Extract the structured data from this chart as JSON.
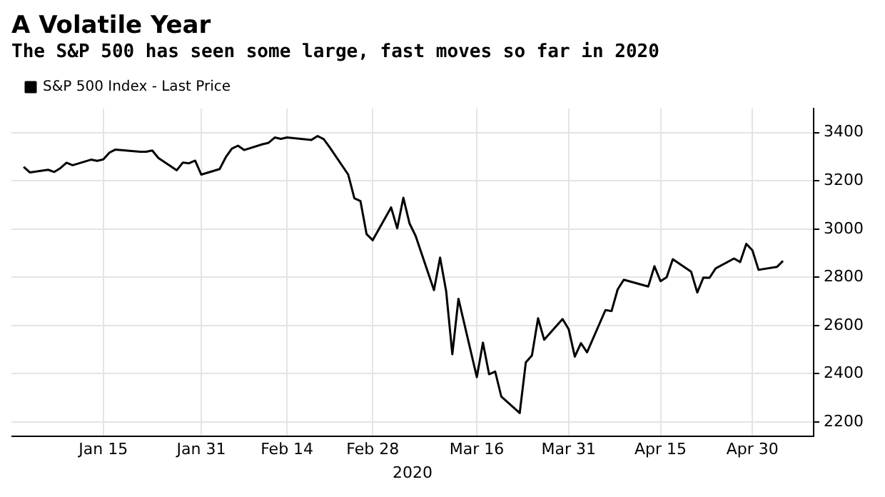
{
  "chart_data": {
    "type": "line",
    "title": "A Volatile Year",
    "subtitle": "The S&P 500 has seen some large, fast moves so far in 2020",
    "xlabel": "2020",
    "x": [
      "2020-01-02",
      "2020-01-03",
      "2020-01-06",
      "2020-01-07",
      "2020-01-08",
      "2020-01-09",
      "2020-01-10",
      "2020-01-13",
      "2020-01-14",
      "2020-01-15",
      "2020-01-16",
      "2020-01-17",
      "2020-01-21",
      "2020-01-22",
      "2020-01-23",
      "2020-01-24",
      "2020-01-27",
      "2020-01-28",
      "2020-01-29",
      "2020-01-30",
      "2020-01-31",
      "2020-02-03",
      "2020-02-04",
      "2020-02-05",
      "2020-02-06",
      "2020-02-07",
      "2020-02-10",
      "2020-02-11",
      "2020-02-12",
      "2020-02-13",
      "2020-02-14",
      "2020-02-18",
      "2020-02-19",
      "2020-02-20",
      "2020-02-21",
      "2020-02-24",
      "2020-02-25",
      "2020-02-26",
      "2020-02-27",
      "2020-02-28",
      "2020-03-02",
      "2020-03-03",
      "2020-03-04",
      "2020-03-05",
      "2020-03-06",
      "2020-03-09",
      "2020-03-10",
      "2020-03-11",
      "2020-03-12",
      "2020-03-13",
      "2020-03-16",
      "2020-03-17",
      "2020-03-18",
      "2020-03-19",
      "2020-03-20",
      "2020-03-23",
      "2020-03-24",
      "2020-03-25",
      "2020-03-26",
      "2020-03-27",
      "2020-03-30",
      "2020-03-31",
      "2020-04-01",
      "2020-04-02",
      "2020-04-03",
      "2020-04-06",
      "2020-04-07",
      "2020-04-08",
      "2020-04-09",
      "2020-04-13",
      "2020-04-14",
      "2020-04-15",
      "2020-04-16",
      "2020-04-17",
      "2020-04-20",
      "2020-04-21",
      "2020-04-22",
      "2020-04-23",
      "2020-04-24",
      "2020-04-27",
      "2020-04-28",
      "2020-04-29",
      "2020-04-30",
      "2020-05-01",
      "2020-05-04",
      "2020-05-05"
    ],
    "series": [
      {
        "name": "S&P 500 Index - Last Price",
        "color": "#000000",
        "values": [
          3258,
          3235,
          3246,
          3237,
          3253,
          3275,
          3265,
          3288,
          3283,
          3289,
          3317,
          3330,
          3321,
          3321,
          3326,
          3295,
          3244,
          3276,
          3273,
          3284,
          3226,
          3249,
          3298,
          3334,
          3346,
          3328,
          3352,
          3358,
          3380,
          3374,
          3380,
          3370,
          3386,
          3373,
          3338,
          3226,
          3128,
          3116,
          2979,
          2954,
          3090,
          3003,
          3130,
          3024,
          2972,
          2747,
          2882,
          2741,
          2481,
          2711,
          2386,
          2529,
          2398,
          2409,
          2305,
          2237,
          2447,
          2476,
          2630,
          2541,
          2627,
          2585,
          2471,
          2527,
          2489,
          2664,
          2660,
          2750,
          2790,
          2762,
          2846,
          2784,
          2800,
          2875,
          2823,
          2737,
          2799,
          2798,
          2837,
          2878,
          2863,
          2939,
          2912,
          2831,
          2843,
          2868
        ]
      }
    ],
    "xlim": [
      "2019-12-31",
      "2020-05-10"
    ],
    "xticks": [
      {
        "value": "2020-01-15",
        "label": "Jan 15"
      },
      {
        "value": "2020-01-31",
        "label": "Jan 31"
      },
      {
        "value": "2020-02-14",
        "label": "Feb 14"
      },
      {
        "value": "2020-02-28",
        "label": "Feb 28"
      },
      {
        "value": "2020-03-16",
        "label": "Mar 16"
      },
      {
        "value": "2020-03-31",
        "label": "Mar 31"
      },
      {
        "value": "2020-04-15",
        "label": "Apr 15"
      },
      {
        "value": "2020-04-30",
        "label": "Apr 30"
      }
    ],
    "ylim": [
      2140,
      3500
    ],
    "yticks": [
      2200,
      2400,
      2600,
      2800,
      3000,
      3200,
      3400
    ],
    "grid": true,
    "legend": "top left",
    "marker": "none",
    "line_style": "solid"
  }
}
